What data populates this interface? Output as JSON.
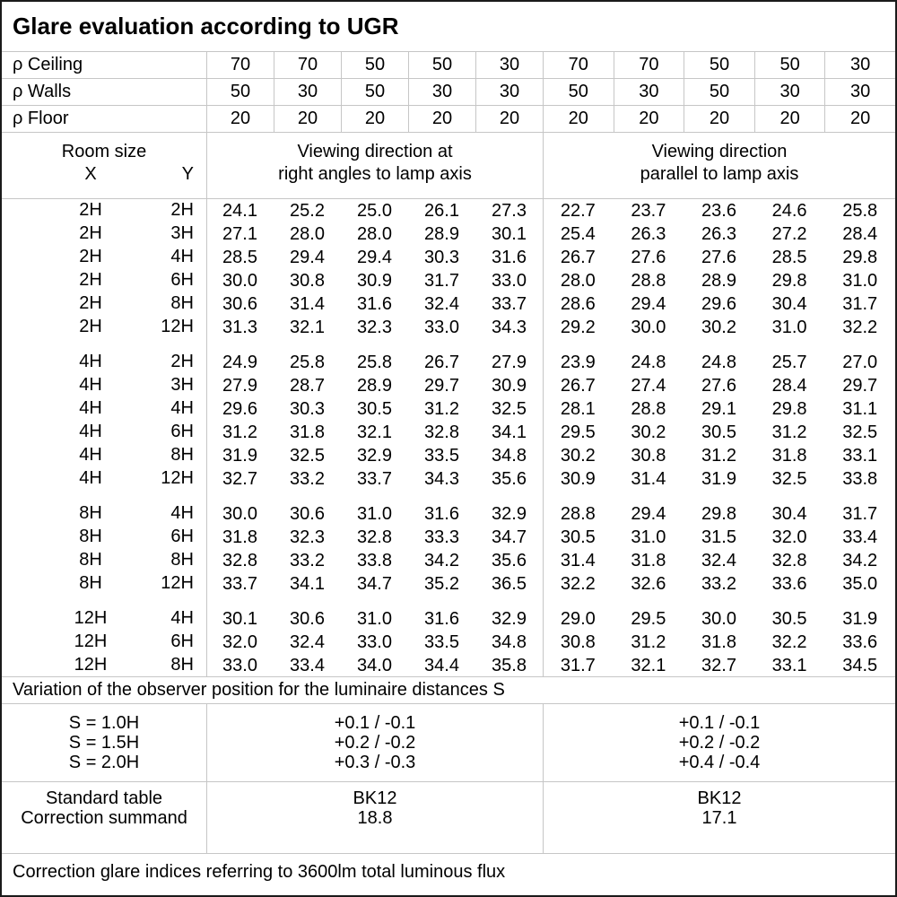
{
  "title": "Glare evaluation according to UGR",
  "reflectance_rows": [
    {
      "label": "ρ Ceiling",
      "values": [
        "70",
        "70",
        "50",
        "50",
        "30",
        "70",
        "70",
        "50",
        "50",
        "30"
      ]
    },
    {
      "label": "ρ Walls",
      "values": [
        "50",
        "30",
        "50",
        "30",
        "30",
        "50",
        "30",
        "50",
        "30",
        "30"
      ]
    },
    {
      "label": "ρ Floor",
      "values": [
        "20",
        "20",
        "20",
        "20",
        "20",
        "20",
        "20",
        "20",
        "20",
        "20"
      ]
    }
  ],
  "room_header": {
    "room_size": "Room size",
    "x": "X",
    "y": "Y"
  },
  "group_headers": {
    "right_angles": [
      "Viewing direction at",
      "right angles to lamp axis"
    ],
    "parallel": [
      "Viewing direction",
      "parallel to lamp axis"
    ]
  },
  "ugr_table": {
    "blocks": [
      {
        "rows": [
          {
            "x": "2H",
            "y": "2H",
            "values": [
              "24.1",
              "25.2",
              "25.0",
              "26.1",
              "27.3",
              "22.7",
              "23.7",
              "23.6",
              "24.6",
              "25.8"
            ]
          },
          {
            "x": "2H",
            "y": "3H",
            "values": [
              "27.1",
              "28.0",
              "28.0",
              "28.9",
              "30.1",
              "25.4",
              "26.3",
              "26.3",
              "27.2",
              "28.4"
            ]
          },
          {
            "x": "2H",
            "y": "4H",
            "values": [
              "28.5",
              "29.4",
              "29.4",
              "30.3",
              "31.6",
              "26.7",
              "27.6",
              "27.6",
              "28.5",
              "29.8"
            ]
          },
          {
            "x": "2H",
            "y": "6H",
            "values": [
              "30.0",
              "30.8",
              "30.9",
              "31.7",
              "33.0",
              "28.0",
              "28.8",
              "28.9",
              "29.8",
              "31.0"
            ]
          },
          {
            "x": "2H",
            "y": "8H",
            "values": [
              "30.6",
              "31.4",
              "31.6",
              "32.4",
              "33.7",
              "28.6",
              "29.4",
              "29.6",
              "30.4",
              "31.7"
            ]
          },
          {
            "x": "2H",
            "y": "12H",
            "values": [
              "31.3",
              "32.1",
              "32.3",
              "33.0",
              "34.3",
              "29.2",
              "30.0",
              "30.2",
              "31.0",
              "32.2"
            ]
          }
        ]
      },
      {
        "rows": [
          {
            "x": "4H",
            "y": "2H",
            "values": [
              "24.9",
              "25.8",
              "25.8",
              "26.7",
              "27.9",
              "23.9",
              "24.8",
              "24.8",
              "25.7",
              "27.0"
            ]
          },
          {
            "x": "4H",
            "y": "3H",
            "values": [
              "27.9",
              "28.7",
              "28.9",
              "29.7",
              "30.9",
              "26.7",
              "27.4",
              "27.6",
              "28.4",
              "29.7"
            ]
          },
          {
            "x": "4H",
            "y": "4H",
            "values": [
              "29.6",
              "30.3",
              "30.5",
              "31.2",
              "32.5",
              "28.1",
              "28.8",
              "29.1",
              "29.8",
              "31.1"
            ]
          },
          {
            "x": "4H",
            "y": "6H",
            "values": [
              "31.2",
              "31.8",
              "32.1",
              "32.8",
              "34.1",
              "29.5",
              "30.2",
              "30.5",
              "31.2",
              "32.5"
            ]
          },
          {
            "x": "4H",
            "y": "8H",
            "values": [
              "31.9",
              "32.5",
              "32.9",
              "33.5",
              "34.8",
              "30.2",
              "30.8",
              "31.2",
              "31.8",
              "33.1"
            ]
          },
          {
            "x": "4H",
            "y": "12H",
            "values": [
              "32.7",
              "33.2",
              "33.7",
              "34.3",
              "35.6",
              "30.9",
              "31.4",
              "31.9",
              "32.5",
              "33.8"
            ]
          }
        ]
      },
      {
        "rows": [
          {
            "x": "8H",
            "y": "4H",
            "values": [
              "30.0",
              "30.6",
              "31.0",
              "31.6",
              "32.9",
              "28.8",
              "29.4",
              "29.8",
              "30.4",
              "31.7"
            ]
          },
          {
            "x": "8H",
            "y": "6H",
            "values": [
              "31.8",
              "32.3",
              "32.8",
              "33.3",
              "34.7",
              "30.5",
              "31.0",
              "31.5",
              "32.0",
              "33.4"
            ]
          },
          {
            "x": "8H",
            "y": "8H",
            "values": [
              "32.8",
              "33.2",
              "33.8",
              "34.2",
              "35.6",
              "31.4",
              "31.8",
              "32.4",
              "32.8",
              "34.2"
            ]
          },
          {
            "x": "8H",
            "y": "12H",
            "values": [
              "33.7",
              "34.1",
              "34.7",
              "35.2",
              "36.5",
              "32.2",
              "32.6",
              "33.2",
              "33.6",
              "35.0"
            ]
          }
        ]
      },
      {
        "rows": [
          {
            "x": "12H",
            "y": "4H",
            "values": [
              "30.1",
              "30.6",
              "31.0",
              "31.6",
              "32.9",
              "29.0",
              "29.5",
              "30.0",
              "30.5",
              "31.9"
            ]
          },
          {
            "x": "12H",
            "y": "6H",
            "values": [
              "32.0",
              "32.4",
              "33.0",
              "33.5",
              "34.8",
              "30.8",
              "31.2",
              "31.8",
              "32.2",
              "33.6"
            ]
          },
          {
            "x": "12H",
            "y": "8H",
            "values": [
              "33.0",
              "33.4",
              "34.0",
              "34.4",
              "35.8",
              "31.7",
              "32.1",
              "32.7",
              "33.1",
              "34.5"
            ]
          }
        ]
      }
    ]
  },
  "variation_note": "Variation of the observer position for the luminaire distances S",
  "spacing_correction": {
    "rows": [
      {
        "label": "S = 1.0H",
        "right_angles": "+0.1 / -0.1",
        "parallel": "+0.1 / -0.1"
      },
      {
        "label": "S = 1.5H",
        "right_angles": "+0.2 / -0.2",
        "parallel": "+0.2 / -0.2"
      },
      {
        "label": "S = 2.0H",
        "right_angles": "+0.3 / -0.3",
        "parallel": "+0.4 / -0.4"
      }
    ]
  },
  "summary": {
    "standard_table": {
      "label": "Standard table",
      "right_angles": "BK12",
      "parallel": "BK12"
    },
    "correction_summand": {
      "label": "Correction summand",
      "right_angles": "18.8",
      "parallel": "17.1"
    }
  },
  "footer_note": "Correction glare indices referring to 3600lm total luminous flux",
  "colors": {
    "grid_line": "#c6c6c6",
    "outer_border": "#1a1a1a",
    "text": "#000000",
    "background": "#ffffff"
  }
}
